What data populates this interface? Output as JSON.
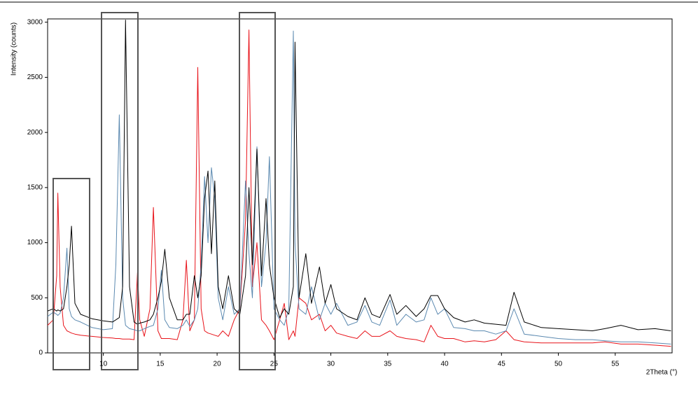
{
  "chart_data": {
    "type": "line",
    "y_label": "Intensity (counts)",
    "x_label": "2Theta (°)",
    "xlim": [
      5.1,
      60
    ],
    "ylim": [
      0,
      3030
    ],
    "xticks": [
      10,
      15,
      20,
      25,
      30,
      35,
      40,
      45,
      50,
      55
    ],
    "yticks": [
      0,
      500,
      1000,
      1500,
      2000,
      2500,
      3000
    ],
    "grid": false,
    "x": [
      5.1,
      5.6,
      5.9,
      6.0,
      6.2,
      6.5,
      6.8,
      7.0,
      7.2,
      7.5,
      8,
      9,
      10,
      10.8,
      11.1,
      11.4,
      11.7,
      11.95,
      12.3,
      12.7,
      13.0,
      13.2,
      13.6,
      14.1,
      14.4,
      14.8,
      15.1,
      15.4,
      15.8,
      16.5,
      17.0,
      17.3,
      17.6,
      18.0,
      18.3,
      18.6,
      18.9,
      19.2,
      19.5,
      19.8,
      20.1,
      20.5,
      21.0,
      21.5,
      22.0,
      22.5,
      22.8,
      23.1,
      23.5,
      23.9,
      24.3,
      24.6,
      25.0,
      25.5,
      25.9,
      26.3,
      26.7,
      26.85,
      27.2,
      27.8,
      28.3,
      29.0,
      29.5,
      30.0,
      30.5,
      31.5,
      32.3,
      33.0,
      33.6,
      34.3,
      35.2,
      35.8,
      36.6,
      37.5,
      38.2,
      38.8,
      39.4,
      40.0,
      40.8,
      41.8,
      42.6,
      43.5,
      44.5,
      45.4,
      46.1,
      47.0,
      48.5,
      50,
      51.5,
      53,
      54.1,
      55.5,
      57,
      58.5,
      59.9
    ],
    "series": [
      {
        "color": "#e8131a",
        "values": [
          250,
          300,
          700,
          1450,
          600,
          250,
          200,
          190,
          180,
          170,
          160,
          150,
          140,
          135,
          130,
          130,
          125,
          125,
          125,
          120,
          730,
          300,
          150,
          400,
          1320,
          200,
          130,
          130,
          130,
          120,
          300,
          840,
          200,
          300,
          2590,
          400,
          200,
          180,
          170,
          160,
          150,
          200,
          150,
          300,
          400,
          1200,
          2930,
          600,
          1000,
          300,
          250,
          200,
          120,
          300,
          450,
          120,
          200,
          150,
          500,
          450,
          300,
          350,
          200,
          250,
          180,
          150,
          130,
          200,
          150,
          150,
          200,
          150,
          130,
          120,
          100,
          250,
          150,
          130,
          130,
          100,
          110,
          100,
          120,
          200,
          120,
          100,
          90,
          90,
          90,
          90,
          100,
          80,
          80,
          70,
          60
        ]
      },
      {
        "color": "#5b89b0",
        "values": [
          330,
          370,
          350,
          340,
          360,
          500,
          950,
          400,
          330,
          300,
          280,
          230,
          210,
          220,
          800,
          2160,
          500,
          250,
          220,
          210,
          200,
          200,
          220,
          240,
          250,
          400,
          750,
          300,
          230,
          220,
          250,
          300,
          240,
          300,
          400,
          800,
          1600,
          1000,
          1680,
          1400,
          500,
          300,
          600,
          350,
          400,
          1560,
          900,
          500,
          1870,
          600,
          1000,
          1780,
          400,
          300,
          250,
          400,
          2920,
          1000,
          400,
          350,
          600,
          300,
          450,
          350,
          450,
          250,
          280,
          430,
          280,
          250,
          480,
          250,
          350,
          280,
          300,
          500,
          350,
          400,
          230,
          220,
          200,
          200,
          170,
          200,
          400,
          170,
          150,
          130,
          120,
          120,
          110,
          100,
          100,
          90,
          80
        ]
      },
      {
        "color": "#000000",
        "values": [
          380,
          400,
          380,
          390,
          380,
          400,
          600,
          800,
          1150,
          450,
          350,
          310,
          290,
          280,
          300,
          320,
          600,
          3020,
          600,
          280,
          260,
          270,
          280,
          300,
          350,
          500,
          650,
          940,
          500,
          300,
          300,
          350,
          350,
          700,
          500,
          700,
          1400,
          1650,
          900,
          1560,
          600,
          400,
          700,
          400,
          350,
          700,
          1500,
          800,
          1850,
          700,
          1400,
          800,
          500,
          320,
          400,
          350,
          600,
          2820,
          500,
          900,
          450,
          780,
          450,
          620,
          400,
          330,
          300,
          500,
          350,
          320,
          530,
          350,
          430,
          330,
          400,
          520,
          520,
          400,
          320,
          280,
          300,
          270,
          260,
          250,
          550,
          280,
          230,
          220,
          210,
          200,
          220,
          250,
          210,
          220,
          200
        ]
      }
    ]
  }
}
